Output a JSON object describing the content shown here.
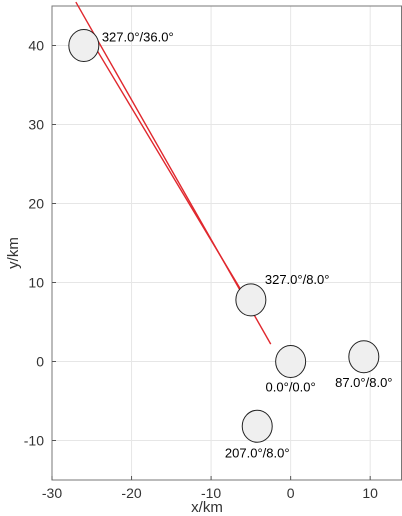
{
  "chart_data": {
    "type": "scatter",
    "xlabel": "x/km",
    "ylabel": "y/km",
    "xlim": [
      -30,
      14
    ],
    "ylim": [
      -15,
      45
    ],
    "xticks": [
      -30,
      -20,
      -10,
      0,
      10
    ],
    "yticks": [
      -10,
      0,
      10,
      20,
      30,
      40
    ],
    "grid": true,
    "points": [
      {
        "x": -26.0,
        "y": 40.0,
        "label": "327.0°/36.0°"
      },
      {
        "x": -5.0,
        "y": 7.8,
        "label": "327.0°/8.0°"
      },
      {
        "x": 0.0,
        "y": 0.0,
        "label": "0.0°/0.0°"
      },
      {
        "x": 9.2,
        "y": 0.6,
        "label": "87.0°/8.0°"
      },
      {
        "x": -4.2,
        "y": -8.2,
        "label": "207.0°/8.0°"
      }
    ],
    "lines": [
      {
        "x": [
          -27.0,
          -2.5
        ],
        "y": [
          45.5,
          2.2
        ],
        "color": "#e0282e"
      },
      {
        "x": [
          -25.0,
          -5.5
        ],
        "y": [
          40.5,
          7.8
        ],
        "color": "#e0282e"
      }
    ],
    "marker_fill": "#efefef",
    "marker_stroke": "#222222"
  }
}
